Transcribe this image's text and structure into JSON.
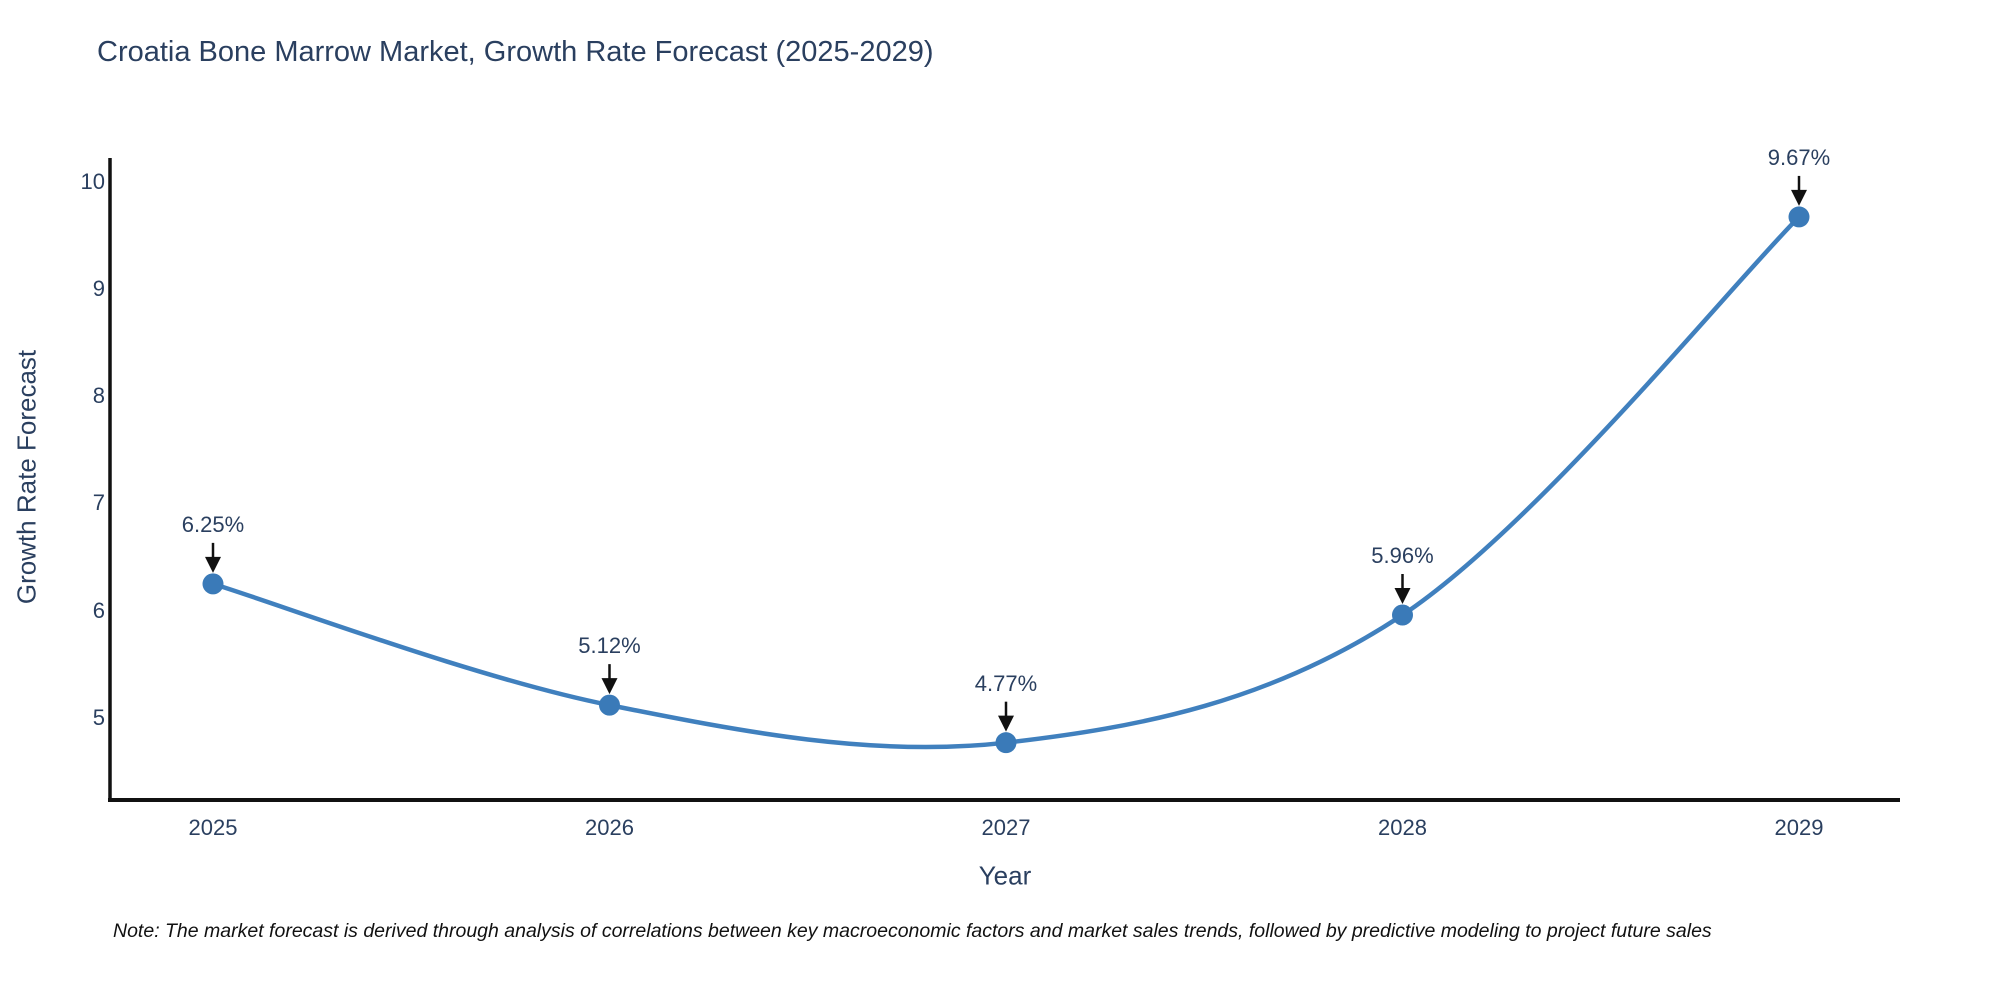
{
  "chart_data": {
    "type": "line",
    "title": "Croatia Bone Marrow Market, Growth Rate Forecast (2025-2029)",
    "xlabel": "Year",
    "ylabel": "Growth Rate Forecast",
    "x": [
      2025,
      2026,
      2027,
      2028,
      2029
    ],
    "series": [
      {
        "name": "Growth Rate Forecast",
        "values": [
          6.25,
          5.12,
          4.77,
          5.96,
          9.67
        ]
      }
    ],
    "point_labels": [
      "6.25%",
      "5.12%",
      "4.77%",
      "5.96%",
      "9.67%"
    ],
    "xticks": [
      "2025",
      "2026",
      "2027",
      "2028",
      "2029"
    ],
    "yticks": [
      5,
      6,
      7,
      8,
      9,
      10
    ],
    "xlim": [
      2024.73,
      2029.26
    ],
    "ylim": [
      4.23,
      10.2
    ],
    "grid": false,
    "legend_position": "none",
    "line_shape": "spline",
    "marker": "circle",
    "annotation_arrows": "down",
    "colors": {
      "line": "#4080be",
      "marker": "#3a7ab8",
      "text": "#2a3f5f",
      "axis": "#111111",
      "arrow": "#111111",
      "background": "#ffffff"
    }
  },
  "note": "Note: The market forecast is derived through analysis of correlations between key macroeconomic factors and market sales trends, followed by predictive modeling to project future sales"
}
